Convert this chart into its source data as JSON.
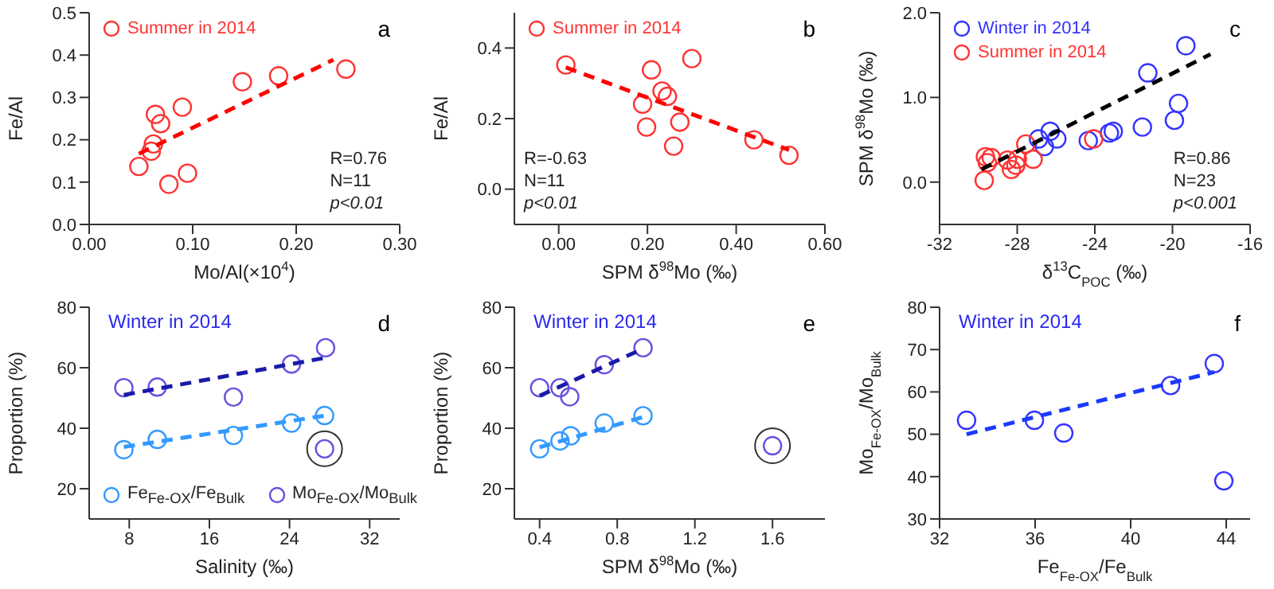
{
  "chart_data": [
    {
      "type": "scatter",
      "xlabel": "Mo/Al(×10$^{4}$)",
      "ylabel": "Fe/Al",
      "annotations": [
        "a",
        "R=0.76",
        "N=11",
        "p<0.01"
      ],
      "legend": "top left",
      "marker": "circle",
      "grid": false,
      "xlim": [
        0,
        0.3
      ],
      "ylim": [
        0,
        0.5
      ],
      "xticks": [
        {
          "value": 0,
          "label": "0.00"
        },
        {
          "value": 0.1,
          "label": "0.10"
        },
        {
          "value": 0.2,
          "label": "0.20"
        },
        {
          "value": 0.3,
          "label": "0.30"
        }
      ],
      "yticks": [
        {
          "value": 0,
          "label": "0.0"
        },
        {
          "value": 0.1,
          "label": "0.1"
        },
        {
          "value": 0.2,
          "label": "0.2"
        },
        {
          "value": 0.3,
          "label": "0.3"
        },
        {
          "value": 0.4,
          "label": "0.4"
        },
        {
          "value": 0.5,
          "label": "0.5"
        }
      ],
      "series": [
        {
          "name": "Summer in 2014",
          "color": "#ff3333",
          "x": [
            0.048,
            0.064,
            0.069,
            0.062,
            0.06,
            0.09,
            0.077,
            0.095,
            0.148,
            0.183,
            0.248
          ],
          "values": [
            0.137,
            0.26,
            0.238,
            0.19,
            0.173,
            0.277,
            0.095,
            0.121,
            0.337,
            0.351,
            0.367
          ]
        },
        {
          "type": "line",
          "color": "#ff0000",
          "line_style": "dashed",
          "marker": "none",
          "x": [
            0.048,
            0.236
          ],
          "values": [
            0.167,
            0.389
          ]
        }
      ]
    },
    {
      "type": "scatter",
      "xlabel": "SPM δ$^{98}$Mo (‰)",
      "ylabel": "Fe/Al",
      "annotations": [
        "b",
        "R=-0.63",
        "N=11",
        "p<0.01"
      ],
      "legend": "top left",
      "marker": "circle",
      "grid": false,
      "xlim": [
        -0.1,
        0.6
      ],
      "ylim": [
        -0.1,
        0.5
      ],
      "xticks": [
        {
          "value": 0,
          "label": "0.00"
        },
        {
          "value": 0.2,
          "label": "0.20"
        },
        {
          "value": 0.4,
          "label": "0.40"
        },
        {
          "value": 0.6,
          "label": "0.60"
        }
      ],
      "yticks": [
        {
          "value": 0,
          "label": "0.0"
        },
        {
          "value": 0.2,
          "label": "0.2"
        },
        {
          "value": 0.4,
          "label": "0.4"
        }
      ],
      "series": [
        {
          "name": "Summer in 2014",
          "color": "#ff3333",
          "x": [
            0.016,
            0.209,
            0.3,
            0.233,
            0.245,
            0.189,
            0.273,
            0.198,
            0.259,
            0.44,
            0.519
          ],
          "values": [
            0.352,
            0.338,
            0.37,
            0.278,
            0.263,
            0.241,
            0.19,
            0.176,
            0.122,
            0.14,
            0.096
          ]
        },
        {
          "type": "line",
          "color": "#ff0000",
          "line_style": "dashed",
          "marker": "none",
          "x": [
            0.016,
            0.519
          ],
          "values": [
            0.345,
            0.111
          ]
        }
      ]
    },
    {
      "type": "scatter",
      "xlabel": "δ$^{13}$C$_{POC}$ (‰)",
      "ylabel": "SPM δ$^{98}$Mo (‰)",
      "annotations": [
        "c",
        "R=0.86",
        "N=23",
        "p<0.001"
      ],
      "legend": "top left",
      "marker": "circle",
      "grid": false,
      "xlim": [
        -32,
        -16
      ],
      "ylim": [
        -0.5,
        2
      ],
      "xticks": [
        -32,
        -28,
        -24,
        -20,
        -16
      ],
      "yticks": [
        {
          "value": 0,
          "label": "0.0"
        },
        {
          "value": 1,
          "label": "1.0"
        },
        {
          "value": 2,
          "label": "2.0"
        }
      ],
      "series": [
        {
          "name": "Winter in 2014",
          "color": "#3333ff",
          "x": [
            -19.31,
            -21.27,
            -19.69,
            -19.9,
            -21.55,
            -23.05,
            -23.25,
            -24.34,
            -26.3,
            -25.96,
            -26.6,
            -26.9
          ],
          "values": [
            1.61,
            1.29,
            0.93,
            0.73,
            0.65,
            0.6,
            0.58,
            0.49,
            0.6,
            0.51,
            0.42,
            0.51
          ]
        },
        {
          "name": "Summer in 2014",
          "color": "#ff3333",
          "x": [
            -24.06,
            -27.56,
            -27.18,
            -27.99,
            -28.07,
            -28.5,
            -29.34,
            -29.64,
            -29.54,
            -29.7,
            -28.3
          ],
          "values": [
            0.51,
            0.45,
            0.27,
            0.27,
            0.2,
            0.26,
            0.29,
            0.3,
            0.23,
            0.02,
            0.15
          ]
        },
        {
          "type": "line",
          "color": "#000000",
          "line_style": "dashed",
          "marker": "none",
          "x": [
            -29.84,
            -18.04
          ],
          "values": [
            0.15,
            1.51
          ]
        }
      ]
    },
    {
      "type": "scatter",
      "title": "Winter in 2014",
      "xlabel": "Salinity (‰)",
      "ylabel": "Proportion (%)",
      "annotations": [
        "d"
      ],
      "legend": "bottom",
      "marker": "circle",
      "grid": false,
      "xlim": [
        4,
        35
      ],
      "ylim": [
        10,
        80
      ],
      "xticks": [
        8,
        16,
        24,
        32
      ],
      "yticks": [
        20,
        40,
        60,
        80
      ],
      "series": [
        {
          "name": "Fe$_{Fe-OX}$/Fe$_{Bulk}$",
          "color": "#3399ff",
          "x": [
            7.46,
            10.8,
            18.4,
            24.2,
            27.5
          ],
          "values": [
            32.9,
            36.3,
            37.6,
            41.7,
            44.2
          ]
        },
        {
          "name": "Mo$_{Fe-OX}$/Mo$_{Bulk}$",
          "color": "#6a4fe0",
          "x": [
            7.46,
            10.8,
            18.4,
            24.2,
            27.6
          ],
          "values": [
            53.4,
            53.6,
            50.3,
            61.2,
            66.6
          ]
        },
        {
          "color": "#6a4fe0",
          "x": [
            27.5
          ],
          "values": [
            33.2
          ]
        },
        {
          "type": "line",
          "color": "#3399ff",
          "line_style": "dashed",
          "marker": "none",
          "x": [
            7.46,
            27.6
          ],
          "values": [
            33.8,
            44.2
          ]
        },
        {
          "type": "line",
          "color": "#1a1aa8",
          "line_style": "dashed",
          "marker": "none",
          "x": [
            7.46,
            27.6
          ],
          "values": [
            51.0,
            63.3
          ]
        }
      ]
    },
    {
      "type": "scatter",
      "title": "Winter in 2014",
      "xlabel": "SPM δ$^{98}$Mo (‰)",
      "ylabel": "Proportion (%)",
      "annotations": [
        "e"
      ],
      "marker": "circle",
      "grid": false,
      "xlim": [
        0.27,
        1.87
      ],
      "ylim": [
        10,
        80
      ],
      "xticks": [
        {
          "value": 0.4,
          "label": "0.4"
        },
        {
          "value": 0.8,
          "label": "0.8"
        },
        {
          "value": 1.2,
          "label": "1.2"
        },
        {
          "value": 1.6,
          "label": "1.6"
        }
      ],
      "yticks": [
        20,
        40,
        60,
        80
      ],
      "series": [
        {
          "color": "#3399ff",
          "x": [
            0.4,
            0.505,
            0.56,
            0.733,
            0.933
          ],
          "values": [
            33.2,
            35.8,
            37.5,
            41.7,
            44.1
          ]
        },
        {
          "color": "#6a4fe0",
          "x": [
            0.4,
            0.505,
            0.555,
            0.733,
            0.933
          ],
          "values": [
            53.4,
            53.4,
            50.4,
            61.0,
            66.6
          ]
        },
        {
          "color": "#6a4fe0",
          "x": [
            1.6
          ],
          "values": [
            34.2
          ]
        },
        {
          "type": "line",
          "color": "#3399ff",
          "line_style": "dashed",
          "marker": "none",
          "x": [
            0.4,
            0.933
          ],
          "values": [
            33.7,
            43.7
          ]
        },
        {
          "type": "line",
          "color": "#1a1aa8",
          "line_style": "dashed",
          "marker": "none",
          "x": [
            0.4,
            0.933
          ],
          "values": [
            50.7,
            66.3
          ]
        }
      ]
    },
    {
      "type": "scatter",
      "title": "Winter in 2014",
      "xlabel": "Fe$_{Fe-OX}$/Fe$_{Bulk}$",
      "ylabel": "Mo$_{Fe-OX}$/Mo$_{Bulk}$",
      "annotations": [
        "f"
      ],
      "marker": "circle",
      "grid": false,
      "xlim": [
        32,
        45
      ],
      "ylim": [
        30,
        80
      ],
      "xticks": [
        32,
        36,
        40,
        44
      ],
      "yticks": [
        30,
        40,
        50,
        60,
        70,
        80
      ],
      "series": [
        {
          "color": "#3333ff",
          "x": [
            33.13,
            35.97,
            37.2,
            41.67,
            43.5
          ],
          "values": [
            53.3,
            53.3,
            50.3,
            61.5,
            66.7
          ]
        },
        {
          "color": "#3333ff",
          "x": [
            43.9
          ],
          "values": [
            39.0
          ]
        },
        {
          "type": "line",
          "color": "#1a3aff",
          "line_style": "dashed",
          "marker": "none",
          "x": [
            33.13,
            43.5
          ],
          "values": [
            50.0,
            64.7
          ]
        }
      ]
    }
  ]
}
